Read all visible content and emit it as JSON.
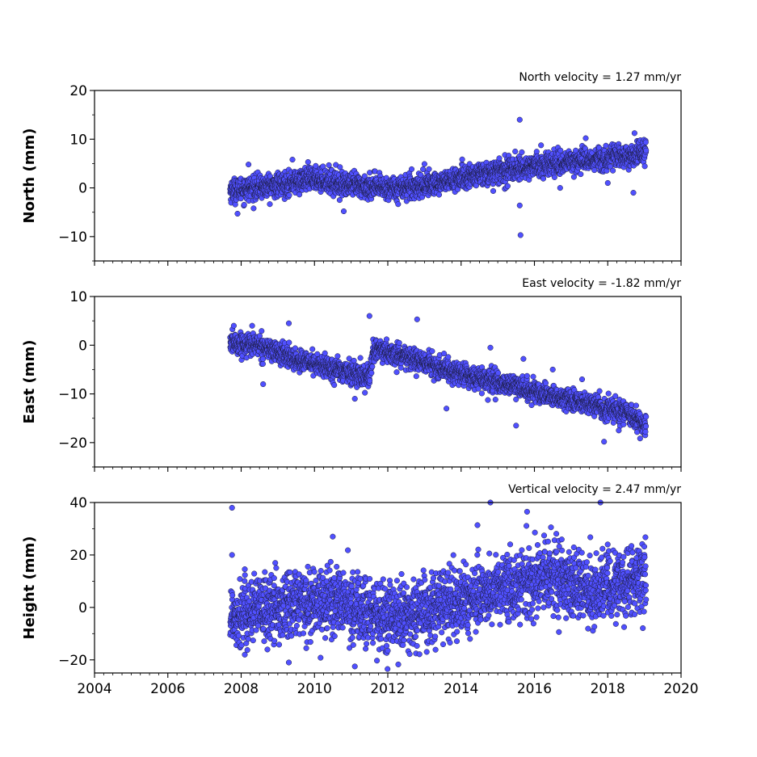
{
  "colors": {
    "marker_fill": "#5050ff",
    "marker_edge": "#1a1a3a",
    "axis": "#000000"
  },
  "chart_data": [
    {
      "type": "scatter",
      "title": "North velocity = 1.27 mm/yr",
      "xlabel": "",
      "ylabel": "North (mm)",
      "xlim": [
        2004,
        2020
      ],
      "ylim": [
        -15,
        20
      ],
      "yticks": [
        -10,
        0,
        10,
        20
      ],
      "ytick_labels": [
        "−10",
        "0",
        "10",
        "20"
      ],
      "xticks": [
        2004,
        2006,
        2008,
        2010,
        2012,
        2014,
        2016,
        2018,
        2020
      ],
      "xtick_labels_shown": false,
      "grid": false,
      "x_start": 2007.7,
      "x_end": 2019.05,
      "trend": [
        [
          2007.7,
          -0.5
        ],
        [
          2009.0,
          0.5
        ],
        [
          2010.0,
          2.0
        ],
        [
          2011.0,
          0.5
        ],
        [
          2012.0,
          0.0
        ],
        [
          2013.0,
          0.5
        ],
        [
          2014.0,
          2.0
        ],
        [
          2015.5,
          4.0
        ],
        [
          2017.0,
          5.5
        ],
        [
          2018.5,
          6.5
        ],
        [
          2019.05,
          7.5
        ]
      ],
      "noise_sd": 1.2,
      "outliers": [
        [
          2007.9,
          -5.3
        ],
        [
          2008.2,
          4.8
        ],
        [
          2009.4,
          5.8
        ],
        [
          2010.8,
          -4.8
        ],
        [
          2013.0,
          4.9
        ],
        [
          2015.6,
          14.0
        ],
        [
          2015.62,
          -9.7
        ],
        [
          2015.6,
          -3.6
        ],
        [
          2016.7,
          0.0
        ],
        [
          2017.4,
          10.2
        ],
        [
          2018.7,
          -1.0
        ],
        [
          2018.0,
          1.0
        ]
      ]
    },
    {
      "type": "scatter",
      "title": "East velocity = -1.82 mm/yr",
      "xlabel": "",
      "ylabel": "East (mm)",
      "xlim": [
        2004,
        2020
      ],
      "ylim": [
        -25,
        10
      ],
      "yticks": [
        -20,
        -10,
        0,
        10
      ],
      "ytick_labels": [
        "−20",
        "−10",
        "0",
        "10"
      ],
      "xticks": [
        2004,
        2006,
        2008,
        2010,
        2012,
        2014,
        2016,
        2018,
        2020
      ],
      "xtick_labels_shown": false,
      "grid": false,
      "x_start": 2007.7,
      "x_end": 2019.05,
      "trend": [
        [
          2007.7,
          0.5
        ],
        [
          2008.5,
          0.0
        ],
        [
          2009.5,
          -3.0
        ],
        [
          2011.5,
          -6.5
        ],
        [
          2011.6,
          -1.0
        ],
        [
          2012.5,
          -2.5
        ],
        [
          2014.0,
          -6.0
        ],
        [
          2015.5,
          -8.5
        ],
        [
          2016.5,
          -10.5
        ],
        [
          2017.8,
          -12.5
        ],
        [
          2018.5,
          -14.0
        ],
        [
          2019.05,
          -16.5
        ]
      ],
      "noise_sd": 1.1,
      "outliers": [
        [
          2007.8,
          4.0
        ],
        [
          2008.3,
          4.0
        ],
        [
          2008.6,
          -8.0
        ],
        [
          2009.3,
          4.5
        ],
        [
          2011.5,
          6.0
        ],
        [
          2011.1,
          -11.0
        ],
        [
          2012.8,
          5.3
        ],
        [
          2013.6,
          -13.0
        ],
        [
          2014.8,
          -0.5
        ],
        [
          2015.7,
          -2.8
        ],
        [
          2015.5,
          -16.5
        ],
        [
          2017.9,
          -19.8
        ],
        [
          2018.3,
          -17.5
        ],
        [
          2017.3,
          -7.0
        ],
        [
          2016.5,
          -5.0
        ]
      ]
    },
    {
      "type": "scatter",
      "title": "Vertical velocity = 2.47 mm/yr",
      "xlabel": "",
      "ylabel": "Height (mm)",
      "xlim": [
        2004,
        2020
      ],
      "ylim": [
        -25,
        40
      ],
      "yticks": [
        -20,
        0,
        20,
        40
      ],
      "ytick_labels": [
        "−20",
        "0",
        "20",
        "40"
      ],
      "xticks": [
        2004,
        2006,
        2008,
        2010,
        2012,
        2014,
        2016,
        2018,
        2020
      ],
      "xtick_labels": [
        "2004",
        "2006",
        "2008",
        "2010",
        "2012",
        "2014",
        "2016",
        "2018",
        "2020"
      ],
      "xtick_labels_shown": true,
      "grid": false,
      "x_start": 2007.7,
      "x_end": 2019.05,
      "trend": [
        [
          2007.7,
          -3.0
        ],
        [
          2009.0,
          0.0
        ],
        [
          2010.5,
          3.0
        ],
        [
          2012.0,
          -5.0
        ],
        [
          2013.0,
          -2.0
        ],
        [
          2014.5,
          5.0
        ],
        [
          2015.5,
          9.0
        ],
        [
          2016.5,
          12.0
        ],
        [
          2017.5,
          6.0
        ],
        [
          2018.5,
          10.0
        ],
        [
          2019.05,
          12.0
        ]
      ],
      "noise_sd": 6.5,
      "outliers": [
        [
          2007.75,
          38.0
        ],
        [
          2007.75,
          20.0
        ],
        [
          2010.5,
          27.0
        ],
        [
          2014.8,
          40.0
        ],
        [
          2015.8,
          36.5
        ],
        [
          2017.8,
          40.0
        ],
        [
          2011.1,
          -22.5
        ],
        [
          2009.3,
          -21.0
        ],
        [
          2008.1,
          -18.0
        ],
        [
          2012.0,
          -16.5
        ]
      ]
    }
  ]
}
